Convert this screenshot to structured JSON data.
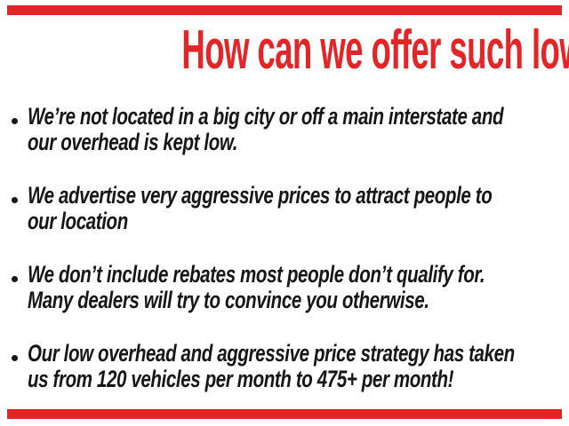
{
  "slide": {
    "title": "How can we offer such low prices?",
    "title_color": "#e42528",
    "accent_bar_color": "#e42528",
    "text_color": "#161616",
    "background": "#ffffff",
    "bullets": [
      {
        "lines": [
          "We’re not located in a big city or off a main interstate and",
          "our overhead is kept low."
        ]
      },
      {
        "lines": [
          "We advertise very aggressive prices to attract people to",
          "our location"
        ]
      },
      {
        "lines": [
          "We don’t include rebates most people don’t qualify for.",
          "Many dealers will try to convince you otherwise."
        ]
      },
      {
        "lines": [
          "Our low overhead and aggressive price strategy has taken",
          "us from 120 vehicles per month to 475+ per month!"
        ]
      }
    ]
  }
}
